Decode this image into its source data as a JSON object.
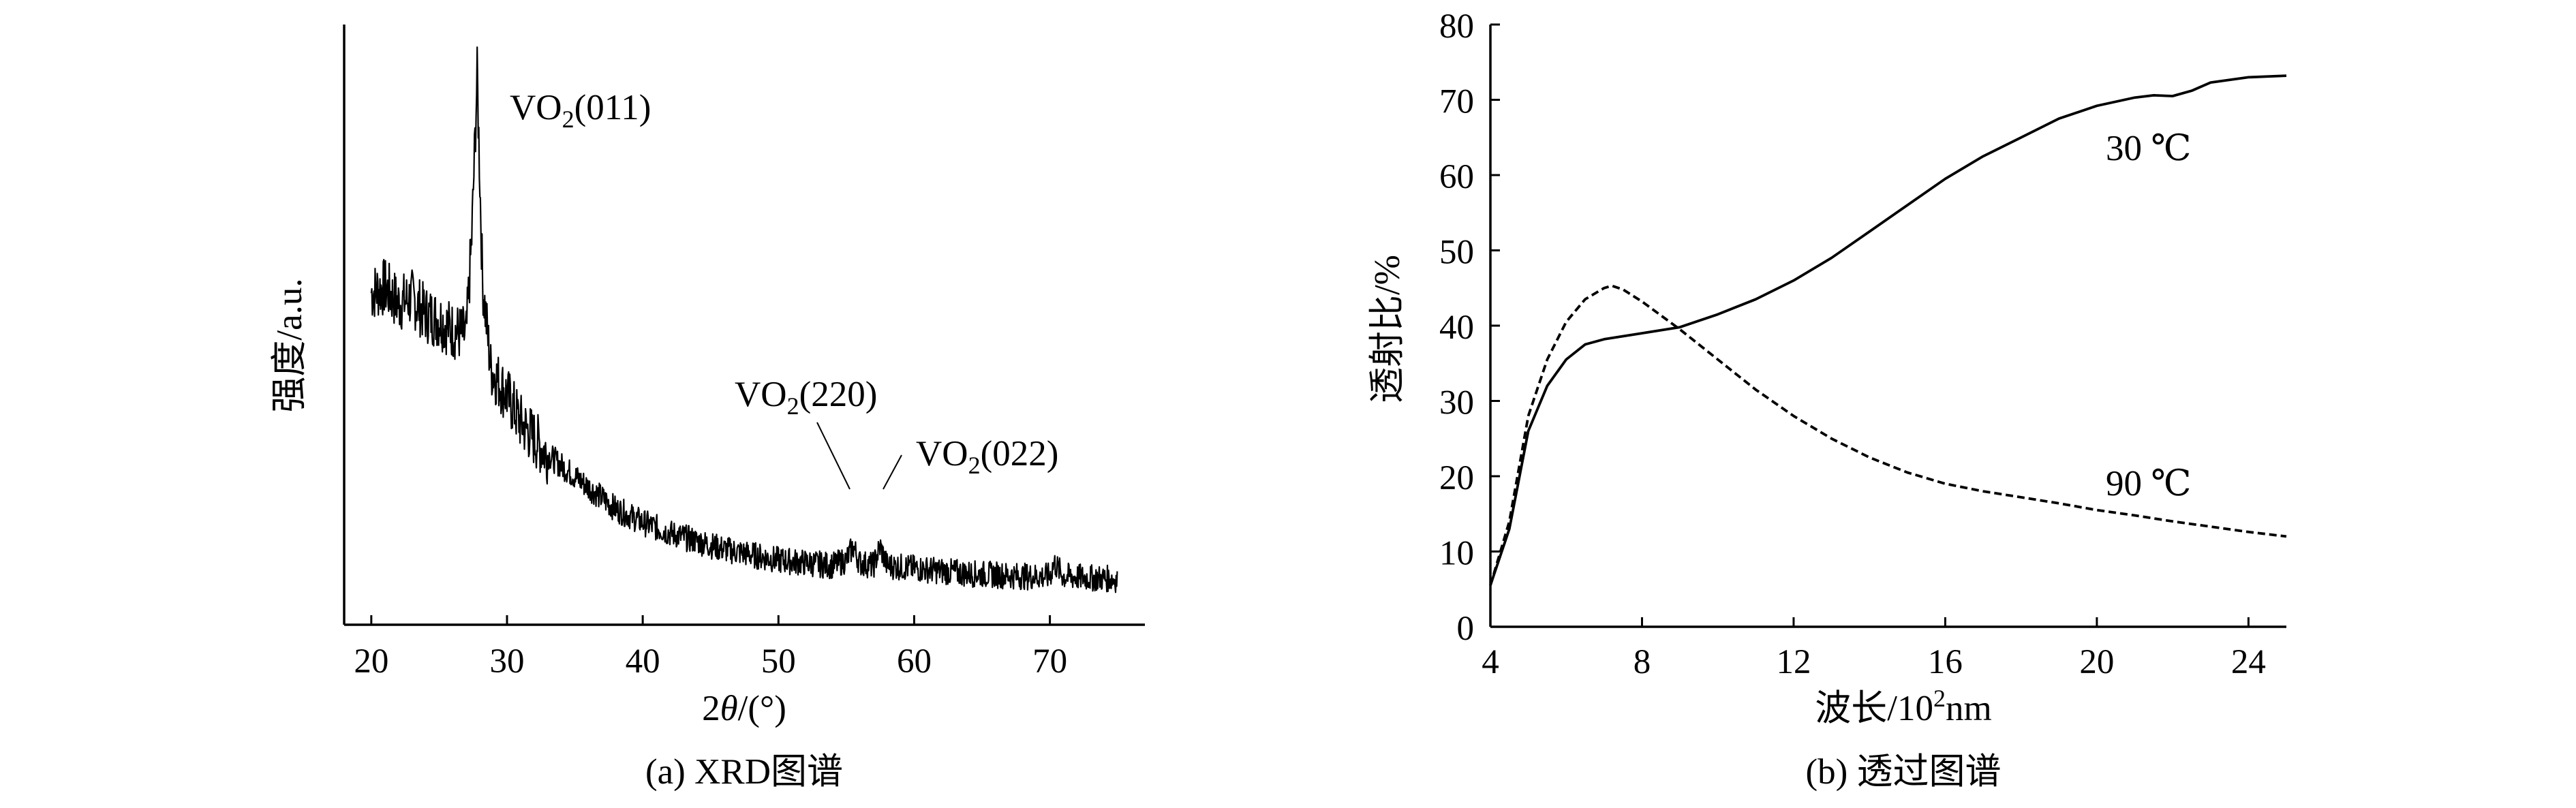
{
  "chart_data": [
    {
      "type": "line",
      "panel": "a",
      "caption": "(a) XRD图谱",
      "xlabel_prefix": "2",
      "xlabel_theta": "θ",
      "xlabel_suffix": "/(°)",
      "ylabel": "强度/a.u.",
      "xlim": [
        18,
        77
      ],
      "xticks": [
        20,
        30,
        40,
        50,
        60,
        70
      ],
      "y_tick_labels": false,
      "grid": false,
      "legend": "none",
      "color": "#000000",
      "annotations": [
        {
          "base": "VO",
          "sub": "2",
          "rest": "(011)",
          "x": 27.8
        },
        {
          "base": "VO",
          "sub": "2",
          "rest": "(220)",
          "x": 55.5
        },
        {
          "base": "VO",
          "sub": "2",
          "rest": "(022)",
          "x": 57.5
        }
      ],
      "series": [
        {
          "name": "",
          "x": [
            20,
            21,
            22,
            23,
            24,
            25,
            26,
            27,
            27.4,
            27.8,
            28.2,
            28.8,
            29.5,
            30,
            31,
            32,
            33,
            34,
            35,
            36,
            37,
            38,
            40,
            42,
            44,
            46,
            48,
            50,
            52,
            54,
            55,
            55.5,
            56,
            57,
            57.5,
            58,
            60,
            62,
            64,
            66,
            68,
            70,
            70.3,
            71,
            73,
            75
          ],
          "y": [
            0.6,
            0.61,
            0.58,
            0.59,
            0.56,
            0.55,
            0.53,
            0.52,
            0.7,
            1.0,
            0.62,
            0.46,
            0.43,
            0.41,
            0.36,
            0.33,
            0.3,
            0.28,
            0.26,
            0.24,
            0.22,
            0.2,
            0.175,
            0.155,
            0.14,
            0.125,
            0.115,
            0.105,
            0.1,
            0.095,
            0.105,
            0.13,
            0.1,
            0.095,
            0.13,
            0.095,
            0.09,
            0.085,
            0.08,
            0.078,
            0.075,
            0.075,
            0.1,
            0.075,
            0.072,
            0.07
          ]
        }
      ]
    },
    {
      "type": "line",
      "panel": "b",
      "caption": "(b) 透过图谱",
      "xlabel_main": "波长/10",
      "xlabel_sup": "2",
      "xlabel_end": "nm",
      "ylabel": "透射比/%",
      "xlim": [
        4,
        25
      ],
      "ylim": [
        0,
        80
      ],
      "xticks": [
        4,
        8,
        12,
        16,
        20,
        24
      ],
      "yticks": [
        0,
        10,
        20,
        30,
        40,
        50,
        60,
        70,
        80
      ],
      "grid": false,
      "legend": "none",
      "color": "#000000",
      "series": [
        {
          "name": "30 ℃",
          "style": "solid",
          "x": [
            4,
            4.5,
            5,
            5.5,
            6,
            6.5,
            7,
            7.5,
            8,
            9,
            10,
            11,
            12,
            13,
            14,
            15,
            16,
            17,
            18,
            19,
            20,
            21,
            21.5,
            22,
            22.5,
            23,
            24,
            25
          ],
          "y": [
            5.5,
            13,
            26,
            32,
            35.5,
            37.5,
            38.2,
            38.6,
            39,
            39.8,
            41.5,
            43.5,
            46,
            49,
            52.5,
            56,
            59.5,
            62.5,
            65,
            67.5,
            69.2,
            70.3,
            70.6,
            70.5,
            71.2,
            72.3,
            73,
            73.2
          ]
        },
        {
          "name": "90 ℃",
          "style": "dashed",
          "x": [
            4,
            4.5,
            5,
            5.5,
            6,
            6.5,
            7,
            7.2,
            7.5,
            8,
            9,
            10,
            11,
            12,
            13,
            14,
            15,
            16,
            17,
            18,
            19,
            20,
            21,
            22,
            23,
            24,
            25
          ],
          "y": [
            5.5,
            14,
            28,
            35.5,
            40.5,
            43.5,
            45,
            45.3,
            44.8,
            43.2,
            39.5,
            35.5,
            31.5,
            28,
            25,
            22.5,
            20.5,
            19,
            18,
            17.2,
            16.4,
            15.5,
            14.8,
            14,
            13.3,
            12.6,
            12
          ]
        }
      ]
    }
  ]
}
